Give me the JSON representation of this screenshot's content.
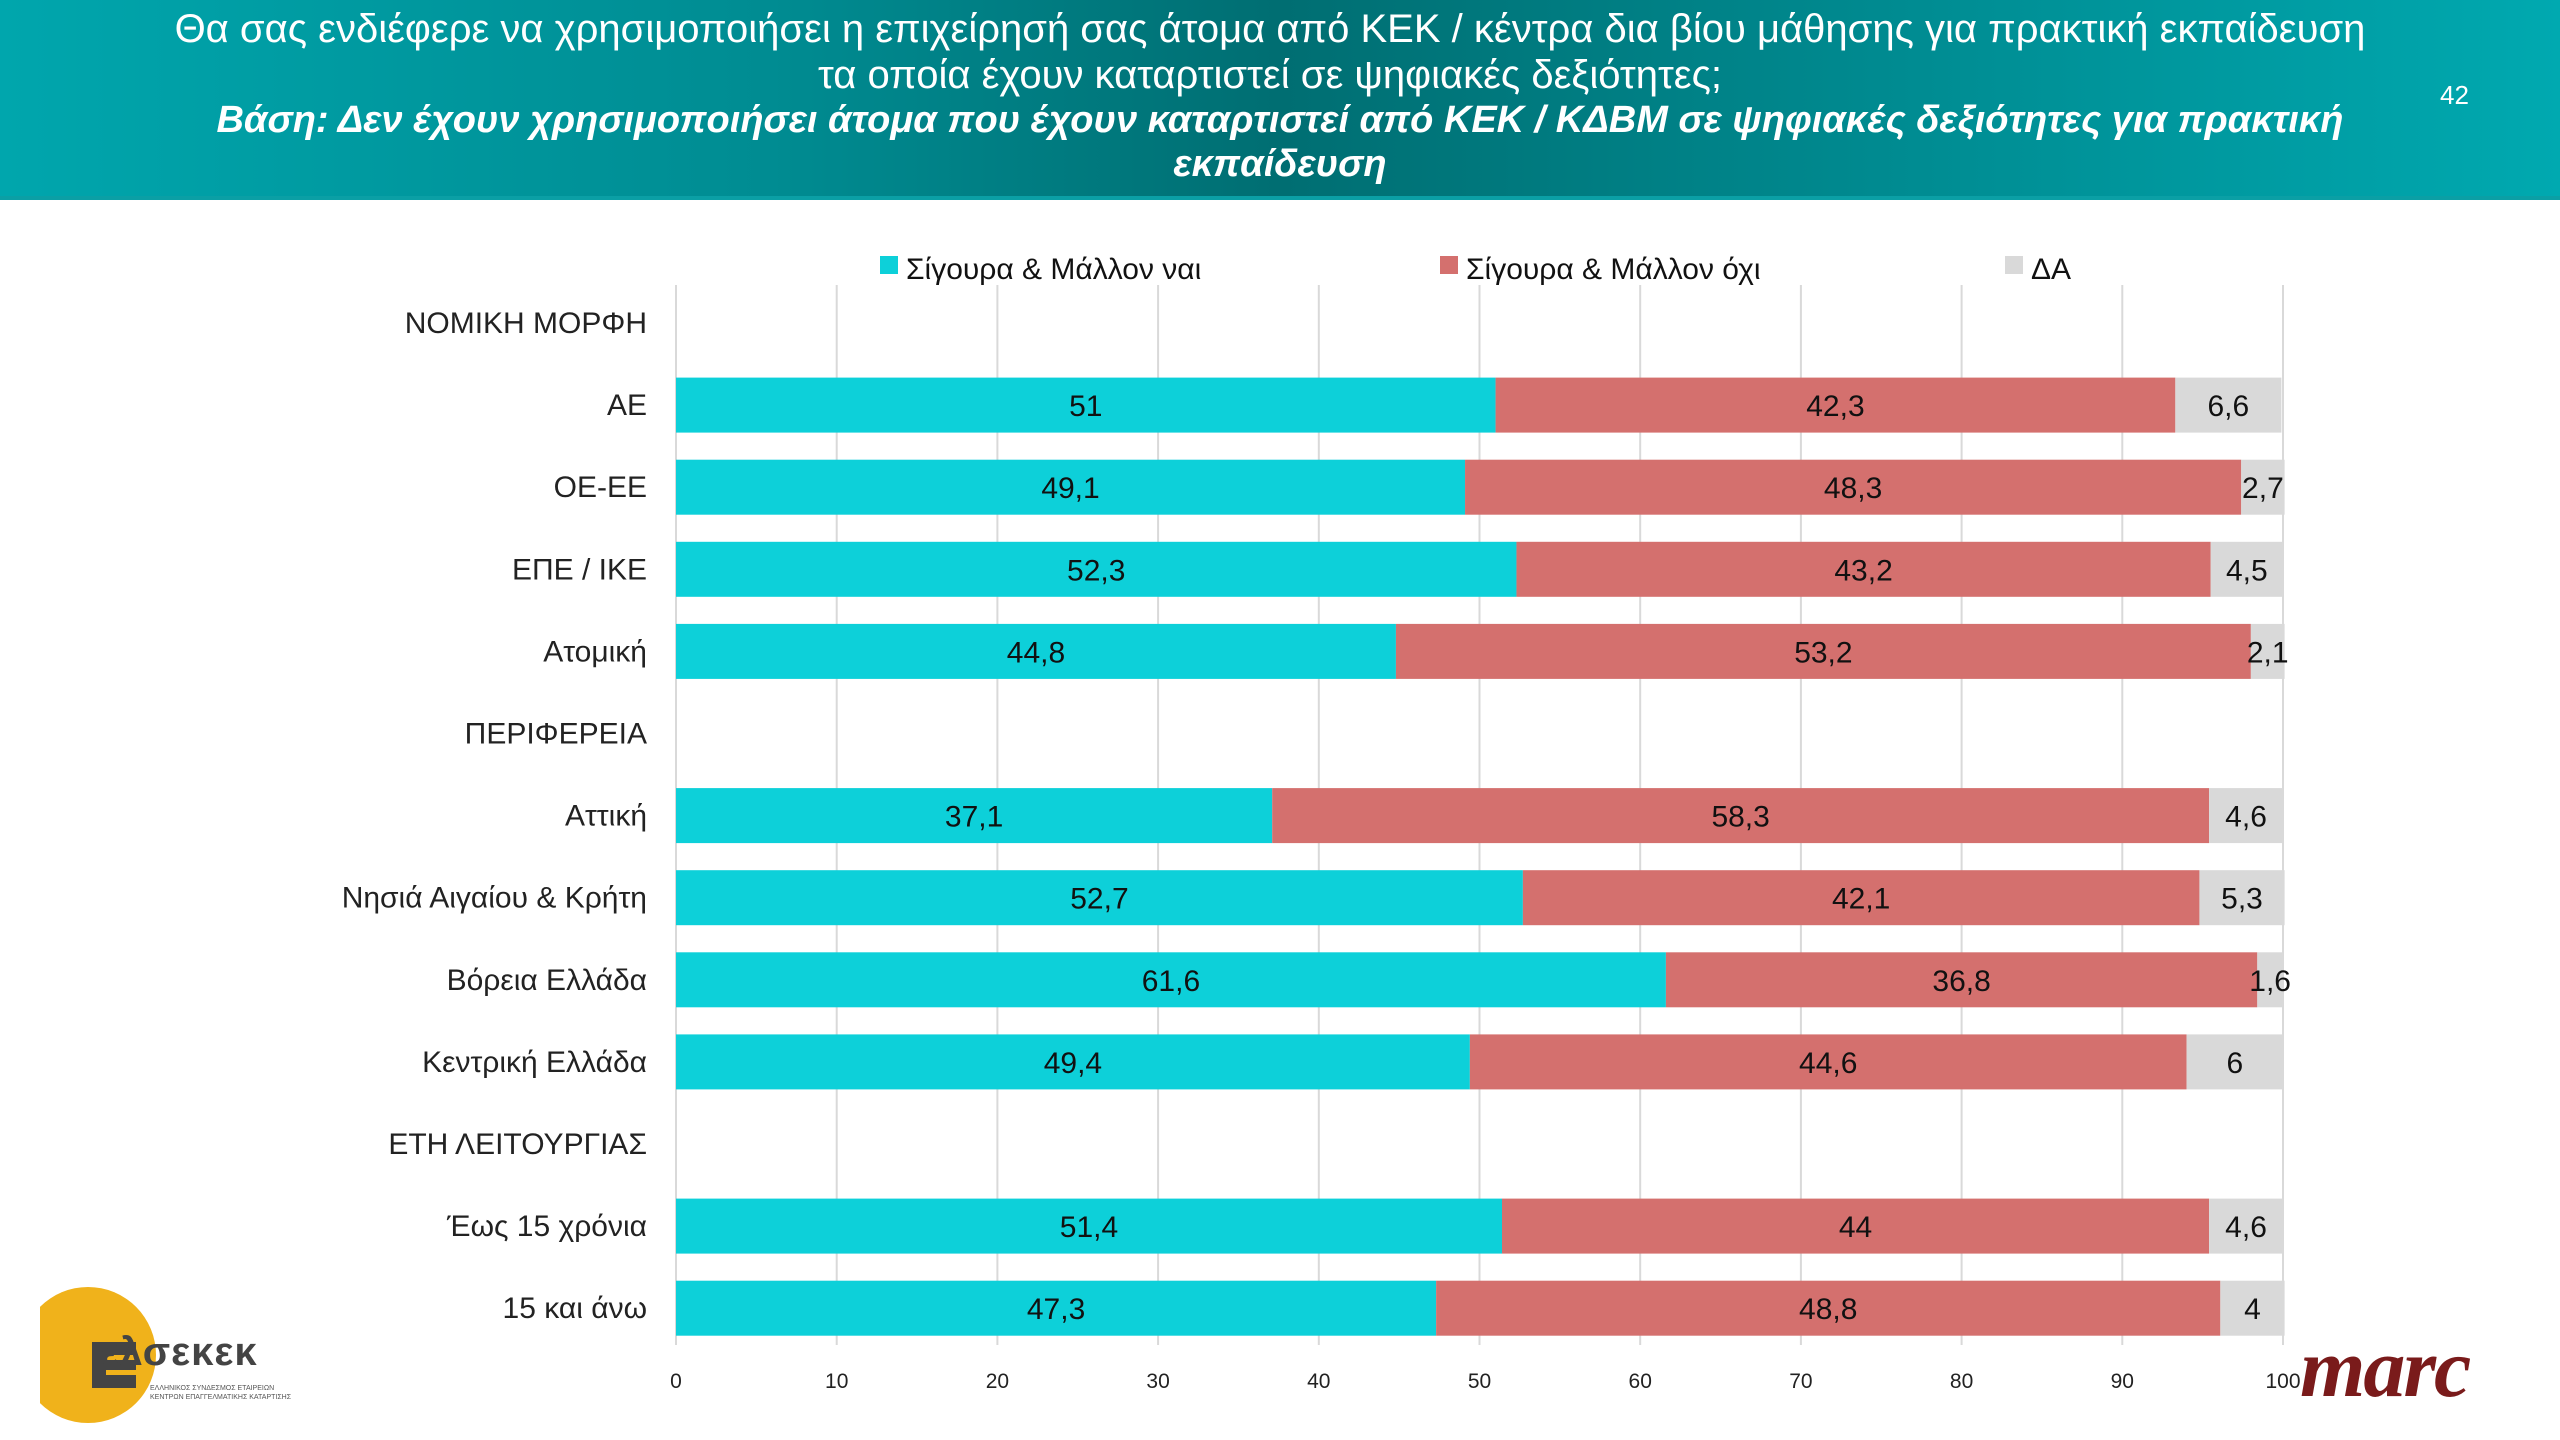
{
  "header": {
    "title": "Θα σας ενδιέφερε να χρησιμοποιήσει η επιχείρησή σας άτομα από ΚΕΚ / κέντρα δια βίου μάθησης για πρακτική εκπαίδευση τα οποία έχουν καταρτιστεί σε ψηφιακές δεξιότητες;",
    "subtitle": "Βάση: Δεν έχουν χρησιμοποιήσει άτομα που έχουν καταρτιστεί από ΚΕΚ / ΚΔΒΜ σε ψηφιακές δεξιότητες για πρακτική εκπαίδευση",
    "page_number": "42"
  },
  "logos": {
    "left": "ελσεκεκ",
    "left_sub": "ΕΛΛΗΝΙΚΟΣ ΣΥΝΔΕΣΜΟΣ ΕΤΑΙΡΕΙΩΝ ΚΕΝΤΡΩΝ ΕΠΑΓΓΕΛΜΑΤΙΚΗΣ ΚΑΤΑΡΤΙΣΗΣ",
    "right": "marc"
  },
  "chart_data": {
    "type": "bar",
    "orientation": "horizontal",
    "stacked": true,
    "xlim": [
      0,
      100
    ],
    "x_ticks": [
      "0",
      "10",
      "20",
      "30",
      "40",
      "50",
      "60",
      "70",
      "80",
      "90",
      "100"
    ],
    "grid": true,
    "legend_position": "top",
    "series": [
      {
        "name": "Σίγουρα & Μάλλον ναι",
        "color": "#0dd0d9"
      },
      {
        "name": "Σίγουρα & Μάλλον όχι",
        "color": "#d4706e"
      },
      {
        "name": "ΔΑ",
        "color": "#d9d9d9"
      }
    ],
    "rows": [
      {
        "label": "ΝΟΜΙΚΗ ΜΟΡΦΗ",
        "section": true
      },
      {
        "label": "ΑΕ",
        "values": [
          51,
          42.3,
          6.6
        ],
        "labels": [
          "51",
          "42,3",
          "6,6"
        ]
      },
      {
        "label": "ΟΕ-ΕΕ",
        "values": [
          49.1,
          48.3,
          2.7
        ],
        "labels": [
          "49,1",
          "48,3",
          "2,7"
        ]
      },
      {
        "label": "ΕΠΕ / ΙΚΕ",
        "values": [
          52.3,
          43.2,
          4.5
        ],
        "labels": [
          "52,3",
          "43,2",
          "4,5"
        ]
      },
      {
        "label": "Ατομική",
        "values": [
          44.8,
          53.2,
          2.1
        ],
        "labels": [
          "44,8",
          "53,2",
          "2,1"
        ]
      },
      {
        "label": "ΠΕΡΙΦΕΡΕΙΑ",
        "section": true
      },
      {
        "label": "Αττική",
        "values": [
          37.1,
          58.3,
          4.6
        ],
        "labels": [
          "37,1",
          "58,3",
          "4,6"
        ]
      },
      {
        "label": "Νησιά Αιγαίου & Κρήτη",
        "values": [
          52.7,
          42.1,
          5.3
        ],
        "labels": [
          "52,7",
          "42,1",
          "5,3"
        ]
      },
      {
        "label": "Βόρεια Ελλάδα",
        "values": [
          61.6,
          36.8,
          1.6
        ],
        "labels": [
          "61,6",
          "36,8",
          "1,6"
        ]
      },
      {
        "label": "Κεντρική Ελλάδα",
        "values": [
          49.4,
          44.6,
          6
        ],
        "labels": [
          "49,4",
          "44,6",
          "6"
        ]
      },
      {
        "label": "ΕΤΗ ΛΕΙΤΟΥΡΓΙΑΣ",
        "section": true
      },
      {
        "label": "Έως 15 χρόνια",
        "values": [
          51.4,
          44,
          4.6
        ],
        "labels": [
          "51,4",
          "44",
          "4,6"
        ]
      },
      {
        "label": "15 και άνω",
        "values": [
          47.3,
          48.8,
          4
        ],
        "labels": [
          "47,3",
          "48,8",
          "4"
        ]
      }
    ]
  }
}
